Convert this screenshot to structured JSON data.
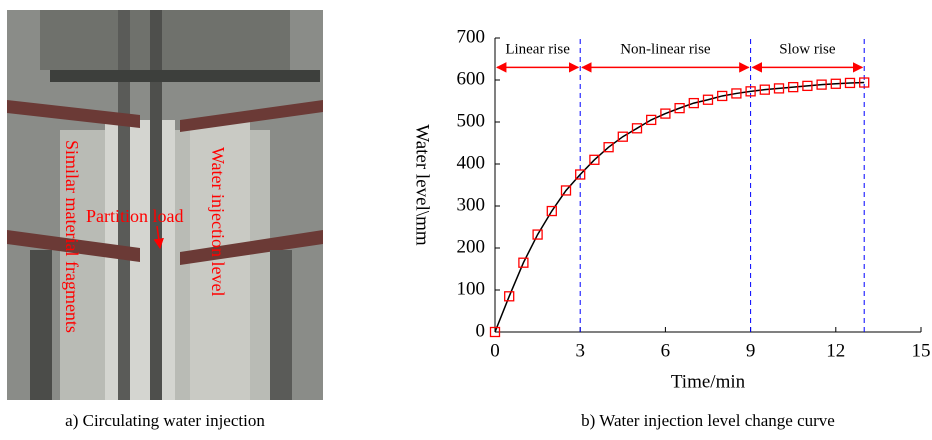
{
  "figure_a": {
    "labels": [
      "Similar material fragments",
      "Partition load",
      "Water injection level"
    ],
    "caption": "a) Circulating water injection"
  },
  "chart_data": {
    "type": "line",
    "caption": "b) Water injection level change curve",
    "x_label": "Time/min",
    "y_label": "Water level\\mm",
    "x": [
      0,
      0.5,
      1,
      1.5,
      2,
      2.5,
      3,
      3.5,
      4,
      4.5,
      5,
      5.5,
      6,
      6.5,
      7,
      7.5,
      8,
      8.5,
      9,
      9.5,
      10,
      10.5,
      11,
      11.5,
      12,
      12.5,
      13
    ],
    "series": [
      {
        "color": "#ff0000",
        "line_color": "#000000",
        "marker": "square",
        "values": [
          0,
          85,
          165,
          232,
          288,
          337,
          375,
          410,
          440,
          465,
          485,
          505,
          520,
          533,
          545,
          553,
          562,
          568,
          573,
          577,
          580,
          583,
          586,
          589,
          591,
          593,
          594
        ]
      }
    ],
    "phases": [
      {
        "label": "Linear rise",
        "x_start": 0,
        "x_end": 3
      },
      {
        "label": "Non-linear rise",
        "x_start": 3,
        "x_end": 9
      },
      {
        "label": "Slow rise",
        "x_start": 9,
        "x_end": 13
      }
    ],
    "phase_arrow_color": "#ff0000",
    "boundary_color": "#0000ff",
    "xlim": [
      0,
      15
    ],
    "xticks": [
      0,
      3,
      6,
      9,
      12,
      15
    ],
    "ylim": [
      0,
      700
    ],
    "yticks": [
      0,
      100,
      200,
      300,
      400,
      500,
      600,
      700
    ],
    "grid": false
  }
}
